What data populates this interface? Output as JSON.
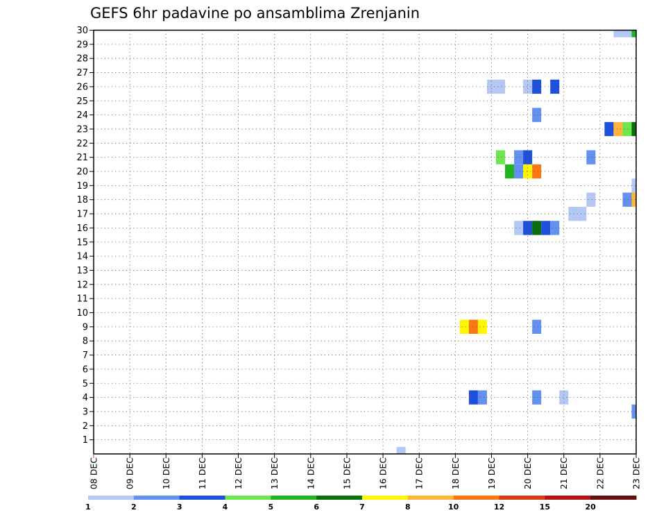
{
  "chart_data": {
    "type": "heatmap",
    "title": "GEFS 6hr padavine po ansamblima Zrenjanin",
    "xlabel": "",
    "ylabel": "",
    "x_ticks": [
      "08 DEC",
      "09 DEC",
      "10 DEC",
      "11 DEC",
      "12 DEC",
      "13 DEC",
      "14 DEC",
      "15 DEC",
      "16 DEC",
      "17 DEC",
      "18 DEC",
      "19 DEC",
      "20 DEC",
      "21 DEC",
      "22 DEC",
      "23 DEC"
    ],
    "y_ticks": [
      "1",
      "2",
      "3",
      "4",
      "5",
      "6",
      "7",
      "8",
      "9",
      "10",
      "11",
      "12",
      "13",
      "14",
      "15",
      "16",
      "17",
      "18",
      "19",
      "20",
      "21",
      "22",
      "23",
      "24",
      "25",
      "26",
      "27",
      "28",
      "29",
      "30"
    ],
    "x_range_days": [
      0,
      15
    ],
    "y_range_members": [
      0,
      30
    ],
    "step_hours": 6,
    "grid": true,
    "legend": {
      "labels": [
        "1",
        "2",
        "3",
        "4",
        "5",
        "6",
        "7",
        "8",
        "10",
        "12",
        "15",
        "20"
      ],
      "colors": [
        "#b4c8f5",
        "#6490f0",
        "#1e50dc",
        "#6ee650",
        "#20b420",
        "#0a6e0a",
        "#fff500",
        "#ffb43c",
        "#fa7814",
        "#dc3c14",
        "#b41414",
        "#641010"
      ]
    },
    "cells": [
      {
        "t": 8.5,
        "member": 0,
        "color": "#b4c8f5"
      },
      {
        "t": 10.25,
        "member": 9,
        "color": "#fff500"
      },
      {
        "t": 10.5,
        "member": 9,
        "color": "#fa7814"
      },
      {
        "t": 10.75,
        "member": 9,
        "color": "#fff500"
      },
      {
        "t": 12.25,
        "member": 9,
        "color": "#6490f0"
      },
      {
        "t": 10.5,
        "member": 4,
        "color": "#1e50dc"
      },
      {
        "t": 10.75,
        "member": 4,
        "color": "#6490f0"
      },
      {
        "t": 12.25,
        "member": 4,
        "color": "#6490f0"
      },
      {
        "t": 13.0,
        "member": 4,
        "color": "#b4c8f5"
      },
      {
        "t": 15.0,
        "member": 3,
        "color": "#6490f0"
      },
      {
        "t": 11.0,
        "member": 26,
        "color": "#b4c8f5"
      },
      {
        "t": 11.25,
        "member": 26,
        "color": "#b4c8f5"
      },
      {
        "t": 12.0,
        "member": 26,
        "color": "#b4c8f5"
      },
      {
        "t": 12.25,
        "member": 26,
        "color": "#1e50dc"
      },
      {
        "t": 12.75,
        "member": 26,
        "color": "#1e50dc"
      },
      {
        "t": 12.25,
        "member": 24,
        "color": "#6490f0"
      },
      {
        "t": 14.25,
        "member": 23,
        "color": "#1e50dc"
      },
      {
        "t": 14.5,
        "member": 23,
        "color": "#ffb43c"
      },
      {
        "t": 14.75,
        "member": 23,
        "color": "#6ee650"
      },
      {
        "t": 15.0,
        "member": 23,
        "color": "#0a6e0a"
      },
      {
        "t": 11.25,
        "member": 21,
        "color": "#6ee650"
      },
      {
        "t": 11.75,
        "member": 21,
        "color": "#6490f0"
      },
      {
        "t": 12.0,
        "member": 21,
        "color": "#1e50dc"
      },
      {
        "t": 13.75,
        "member": 21,
        "color": "#6490f0"
      },
      {
        "t": 11.5,
        "member": 20,
        "color": "#20b420"
      },
      {
        "t": 11.75,
        "member": 20,
        "color": "#6490f0"
      },
      {
        "t": 12.0,
        "member": 20,
        "color": "#fff500"
      },
      {
        "t": 12.25,
        "member": 20,
        "color": "#fa7814"
      },
      {
        "t": 15.0,
        "member": 19,
        "color": "#b4c8f5"
      },
      {
        "t": 13.75,
        "member": 18,
        "color": "#b4c8f5"
      },
      {
        "t": 14.75,
        "member": 18,
        "color": "#6490f0"
      },
      {
        "t": 15.0,
        "member": 18,
        "color": "#ffb43c"
      },
      {
        "t": 13.25,
        "member": 17,
        "color": "#b4c8f5"
      },
      {
        "t": 13.5,
        "member": 17,
        "color": "#b4c8f5"
      },
      {
        "t": 11.75,
        "member": 16,
        "color": "#b4c8f5"
      },
      {
        "t": 12.0,
        "member": 16,
        "color": "#1e50dc"
      },
      {
        "t": 12.25,
        "member": 16,
        "color": "#0a6e0a"
      },
      {
        "t": 12.5,
        "member": 16,
        "color": "#1e50dc"
      },
      {
        "t": 12.75,
        "member": 16,
        "color": "#6490f0"
      },
      {
        "t": 14.5,
        "member": 30,
        "color": "#b4c8f5"
      },
      {
        "t": 14.75,
        "member": 30,
        "color": "#b4c8f5"
      },
      {
        "t": 15.0,
        "member": 30,
        "color": "#20b420"
      }
    ]
  }
}
